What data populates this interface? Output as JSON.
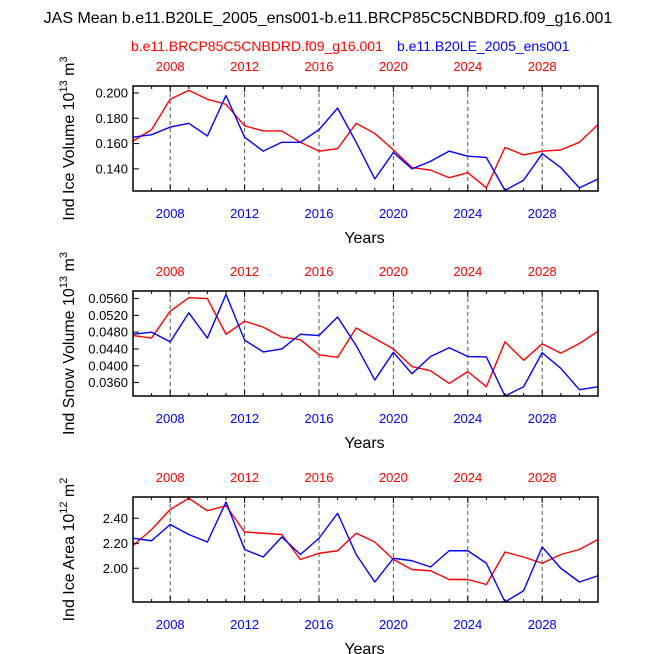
{
  "figure_title": "JAS Mean b.e11.B20LE_2005_ens001-b.e11.BRCP85C5CNBDRD.f09_g16.001",
  "legend": {
    "red_label": "b.e11.BRCP85C5CNBDRD.f09_g16.001",
    "blue_label": "b.e11.B20LE_2005_ens001"
  },
  "colors": {
    "red": "#ff0000",
    "blue": "#0000ff",
    "axis": "#000000"
  },
  "chart_data": [
    {
      "type": "line",
      "title": "",
      "xlabel": "Years",
      "ylabel_main": "Ind Ice Volume 10",
      "ylabel_exp": "13",
      "ylabel_unit": " m",
      "ylabel_unit_exp": "3",
      "x": [
        2006,
        2007,
        2008,
        2009,
        2010,
        2011,
        2012,
        2013,
        2014,
        2015,
        2016,
        2017,
        2018,
        2019,
        2020,
        2021,
        2022,
        2023,
        2024,
        2025,
        2026,
        2027,
        2028,
        2029,
        2030,
        2031
      ],
      "xlim": [
        2006,
        2031
      ],
      "xticks": [
        2008,
        2012,
        2016,
        2020,
        2024,
        2028
      ],
      "xtick_labels": [
        "2008",
        "2012",
        "2016",
        "2020",
        "2024",
        "2028"
      ],
      "ylim": [
        0.1225,
        0.2055
      ],
      "yticks": [
        0.14,
        0.16,
        0.18,
        0.2
      ],
      "ytick_labels": [
        "0.140",
        "0.160",
        "0.180",
        "0.200"
      ],
      "grid": "vertical dashed at major x ticks",
      "series": [
        {
          "name": "b.e11.BRCP85C5CNBDRD.f09_g16.001",
          "color": "#ff0000",
          "values": [
            0.162,
            0.171,
            0.195,
            0.202,
            0.195,
            0.191,
            0.174,
            0.17,
            0.17,
            0.161,
            0.154,
            0.156,
            0.176,
            0.168,
            0.155,
            0.141,
            0.139,
            0.133,
            0.137,
            0.125,
            0.157,
            0.151,
            0.154,
            0.155,
            0.161,
            0.175
          ]
        },
        {
          "name": "b.e11.B20LE_2005_ens001",
          "color": "#0000ff",
          "values": [
            0.165,
            0.167,
            0.173,
            0.176,
            0.166,
            0.198,
            0.165,
            0.154,
            0.161,
            0.161,
            0.171,
            0.188,
            0.161,
            0.132,
            0.153,
            0.14,
            0.146,
            0.154,
            0.15,
            0.149,
            0.123,
            0.131,
            0.152,
            0.141,
            0.125,
            0.132
          ]
        }
      ]
    },
    {
      "type": "line",
      "title": "",
      "xlabel": "Years",
      "ylabel_main": "Ind Snow Volume 10",
      "ylabel_exp": "13",
      "ylabel_unit": " m",
      "ylabel_unit_exp": "3",
      "x": [
        2006,
        2007,
        2008,
        2009,
        2010,
        2011,
        2012,
        2013,
        2014,
        2015,
        2016,
        2017,
        2018,
        2019,
        2020,
        2021,
        2022,
        2023,
        2024,
        2025,
        2026,
        2027,
        2028,
        2029,
        2030,
        2031
      ],
      "xlim": [
        2006,
        2031
      ],
      "xticks": [
        2008,
        2012,
        2016,
        2020,
        2024,
        2028
      ],
      "xtick_labels": [
        "2008",
        "2012",
        "2016",
        "2020",
        "2024",
        "2028"
      ],
      "ylim": [
        0.0328,
        0.0578
      ],
      "yticks": [
        0.036,
        0.04,
        0.044,
        0.048,
        0.052,
        0.056
      ],
      "ytick_labels": [
        "0.0360",
        "0.0400",
        "0.0440",
        "0.0480",
        "0.0520",
        "0.0560"
      ],
      "grid": "vertical dashed at major x ticks",
      "series": [
        {
          "name": "b.e11.BRCP85C5CNBDRD.f09_g16.001",
          "color": "#ff0000",
          "values": [
            0.0472,
            0.0466,
            0.053,
            0.0562,
            0.056,
            0.0475,
            0.0506,
            0.0492,
            0.0468,
            0.0462,
            0.0426,
            0.042,
            0.049,
            0.0465,
            0.044,
            0.0398,
            0.0388,
            0.0358,
            0.0386,
            0.035,
            0.0457,
            0.0413,
            0.0452,
            0.043,
            0.0453,
            0.0482
          ]
        },
        {
          "name": "b.e11.B20LE_2005_ens001",
          "color": "#0000ff",
          "values": [
            0.0475,
            0.048,
            0.0457,
            0.0526,
            0.0466,
            0.057,
            0.0461,
            0.0433,
            0.044,
            0.0475,
            0.0472,
            0.0516,
            0.0448,
            0.0366,
            0.0432,
            0.0381,
            0.0422,
            0.0443,
            0.0422,
            0.0421,
            0.0328,
            0.035,
            0.0431,
            0.0394,
            0.0343,
            0.035
          ]
        }
      ]
    },
    {
      "type": "line",
      "title": "",
      "xlabel": "Years",
      "ylabel_main": "Ind Ice Area 10",
      "ylabel_exp": "12",
      "ylabel_unit": " m",
      "ylabel_unit_exp": "2",
      "x": [
        2006,
        2007,
        2008,
        2009,
        2010,
        2011,
        2012,
        2013,
        2014,
        2015,
        2016,
        2017,
        2018,
        2019,
        2020,
        2021,
        2022,
        2023,
        2024,
        2025,
        2026,
        2027,
        2028,
        2029,
        2030,
        2031
      ],
      "xlim": [
        2006,
        2031
      ],
      "xticks": [
        2008,
        2012,
        2016,
        2020,
        2024,
        2028
      ],
      "xtick_labels": [
        "2008",
        "2012",
        "2016",
        "2020",
        "2024",
        "2028"
      ],
      "ylim": [
        1.73,
        2.57
      ],
      "yticks": [
        2.0,
        2.2,
        2.4
      ],
      "ytick_labels": [
        "2.00",
        "2.20",
        "2.40"
      ],
      "grid": "vertical dashed at major x ticks",
      "series": [
        {
          "name": "b.e11.BRCP85C5CNBDRD.f09_g16.001",
          "color": "#ff0000",
          "values": [
            2.18,
            2.31,
            2.47,
            2.56,
            2.46,
            2.5,
            2.29,
            2.28,
            2.27,
            2.07,
            2.12,
            2.14,
            2.28,
            2.21,
            2.07,
            1.99,
            1.98,
            1.91,
            1.91,
            1.87,
            2.13,
            2.09,
            2.04,
            2.11,
            2.15,
            2.23
          ]
        },
        {
          "name": "b.e11.B20LE_2005_ens001",
          "color": "#0000ff",
          "values": [
            2.24,
            2.22,
            2.35,
            2.27,
            2.21,
            2.53,
            2.15,
            2.09,
            2.25,
            2.11,
            2.24,
            2.44,
            2.11,
            1.89,
            2.08,
            2.06,
            2.01,
            2.14,
            2.14,
            2.04,
            1.73,
            1.82,
            2.17,
            2.0,
            1.89,
            1.94
          ]
        }
      ]
    }
  ]
}
